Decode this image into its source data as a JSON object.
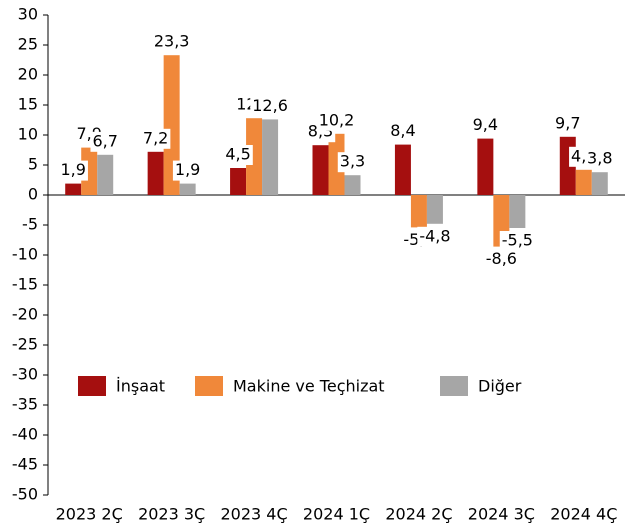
{
  "chart_data": {
    "type": "bar",
    "categories": [
      "2023 2Ç",
      "2023 3Ç",
      "2023 4Ç",
      "2024 1Ç",
      "2024 2Ç",
      "2024 3Ç",
      "2024 4Ç"
    ],
    "series": [
      {
        "name": "İnşaat",
        "color": "#a50f0f",
        "values": [
          1.9,
          7.2,
          4.5,
          8.3,
          8.4,
          9.4,
          9.7
        ],
        "value_labels": [
          "1,9",
          "7,2",
          "4,5",
          "8,3",
          "8,4",
          "9,4",
          "9,7"
        ]
      },
      {
        "name": "Makine ve Teçhizat",
        "color": "#f0883a",
        "values": [
          7.9,
          23.3,
          12.8,
          10.2,
          -5.4,
          -8.6,
          4.2
        ],
        "value_labels": [
          "7,9",
          "23,3",
          "12,8",
          "10,2",
          "-5,4",
          "-8,6",
          "4,2"
        ]
      },
      {
        "name": "Diğer",
        "color": "#a6a6a6",
        "values": [
          6.7,
          1.9,
          12.6,
          3.3,
          -4.8,
          -5.5,
          3.8
        ],
        "value_labels": [
          "6,7",
          "1,9",
          "12,6",
          "3,3",
          "-4,8",
          "-5,5",
          "3,8"
        ]
      }
    ],
    "ylim": [
      -50,
      30
    ],
    "yticks": [
      -50,
      -45,
      -40,
      -35,
      -30,
      -25,
      -20,
      -15,
      -10,
      -5,
      0,
      5,
      10,
      15,
      20,
      25,
      30
    ],
    "legend": "lower left"
  }
}
